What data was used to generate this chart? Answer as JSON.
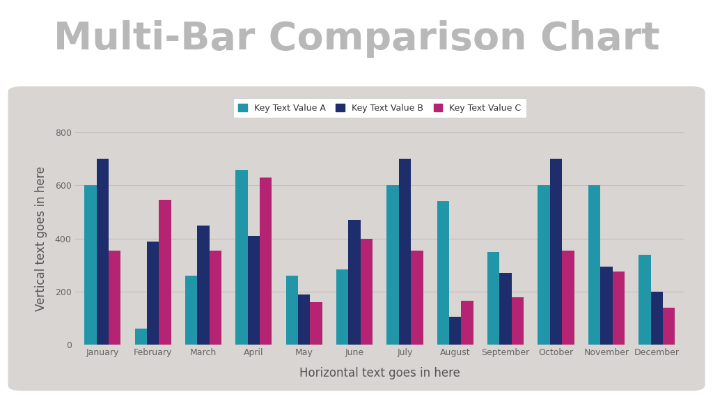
{
  "title": "Multi-Bar Comparison Chart",
  "xlabel": "Horizontal text goes in here",
  "ylabel": "Vertical text goes in here",
  "categories": [
    "January",
    "February",
    "March",
    "April",
    "May",
    "June",
    "July",
    "August",
    "September",
    "October",
    "November",
    "December"
  ],
  "series": [
    {
      "name": "Key Text Value A",
      "color": "#2196a8",
      "values": [
        600,
        60,
        260,
        660,
        260,
        285,
        600,
        540,
        350,
        600,
        600,
        340
      ]
    },
    {
      "name": "Key Text Value B",
      "color": "#1e2d6b",
      "values": [
        700,
        390,
        450,
        410,
        190,
        470,
        700,
        105,
        270,
        700,
        295,
        200
      ]
    },
    {
      "name": "Key Text Value C",
      "color": "#b52472",
      "values": [
        355,
        545,
        355,
        630,
        160,
        400,
        355,
        165,
        180,
        355,
        275,
        140
      ]
    }
  ],
  "ylim": [
    0,
    800
  ],
  "yticks": [
    0,
    200,
    400,
    600,
    800
  ],
  "panel_bg_color": "#d8d5d2",
  "outer_bg_color": "#ffffff",
  "title_color": "#b8b8b8",
  "axis_label_color": "#555555",
  "tick_color": "#666666",
  "legend_bg_color": "#ffffff",
  "title_fontsize": 40,
  "axis_label_fontsize": 12,
  "tick_fontsize": 9,
  "legend_fontsize": 9,
  "bar_width": 0.24,
  "grid_color": "#c2bfbc",
  "grid_linewidth": 0.8
}
